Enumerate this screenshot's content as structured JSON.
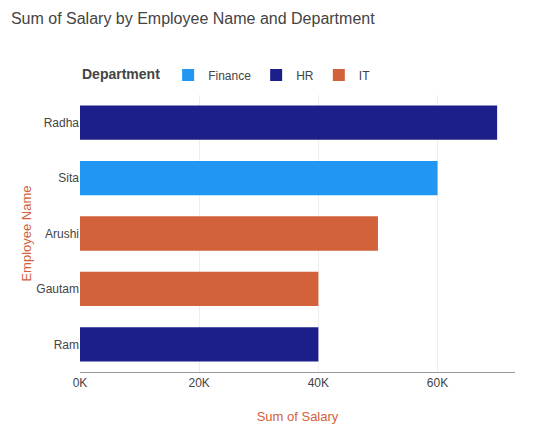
{
  "chart_data": {
    "type": "bar",
    "orientation": "horizontal",
    "title": "Sum of Salary by Employee Name and Department",
    "x_label": "Sum of Salary",
    "y_label": "Employee Name",
    "legend_title": "Department",
    "legend": "top",
    "categories": [
      "Radha",
      "Sita",
      "Arushi",
      "Gautam",
      "Ram"
    ],
    "series": [
      {
        "name": "Finance",
        "color": "#2196f3",
        "values": [
          null,
          60000,
          null,
          null,
          null
        ]
      },
      {
        "name": "HR",
        "color": "#1c1f8a",
        "values": [
          70000,
          null,
          null,
          null,
          40000
        ]
      },
      {
        "name": "IT",
        "color": "#d2623a",
        "values": [
          null,
          null,
          50000,
          40000,
          null
        ]
      }
    ],
    "xlim": [
      0,
      73000
    ],
    "xticks": [
      {
        "value": 0,
        "label": "0K"
      },
      {
        "value": 20000,
        "label": "20K"
      },
      {
        "value": 40000,
        "label": "40K"
      },
      {
        "value": 60000,
        "label": "60K"
      }
    ],
    "grid": true
  }
}
